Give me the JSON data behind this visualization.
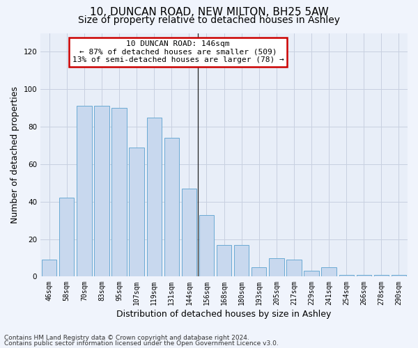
{
  "title1": "10, DUNCAN ROAD, NEW MILTON, BH25 5AW",
  "title2": "Size of property relative to detached houses in Ashley",
  "xlabel": "Distribution of detached houses by size in Ashley",
  "ylabel": "Number of detached properties",
  "categories": [
    "46sqm",
    "58sqm",
    "70sqm",
    "83sqm",
    "95sqm",
    "107sqm",
    "119sqm",
    "131sqm",
    "144sqm",
    "156sqm",
    "168sqm",
    "180sqm",
    "193sqm",
    "205sqm",
    "217sqm",
    "229sqm",
    "241sqm",
    "254sqm",
    "266sqm",
    "278sqm",
    "290sqm"
  ],
  "values": [
    9,
    42,
    91,
    91,
    90,
    69,
    85,
    74,
    47,
    33,
    17,
    17,
    5,
    10,
    9,
    3,
    5,
    1,
    1,
    1,
    1
  ],
  "bar_color": "#c8d8ee",
  "bar_edge_color": "#6aaad4",
  "vline_index": 8,
  "annotation_line1": "10 DUNCAN ROAD: 146sqm",
  "annotation_line2": "← 87% of detached houses are smaller (509)",
  "annotation_line3": "13% of semi-detached houses are larger (78) →",
  "annotation_box_color": "#ffffff",
  "annotation_box_edge": "#cc0000",
  "ylim": [
    0,
    130
  ],
  "yticks": [
    0,
    20,
    40,
    60,
    80,
    100,
    120
  ],
  "grid_color": "#c8d0e0",
  "bg_color": "#e8eef8",
  "fig_bg_color": "#f0f4fc",
  "footer1": "Contains HM Land Registry data © Crown copyright and database right 2024.",
  "footer2": "Contains public sector information licensed under the Open Government Licence v3.0.",
  "title1_fontsize": 11,
  "title2_fontsize": 10,
  "tick_fontsize": 7,
  "ylabel_fontsize": 9,
  "xlabel_fontsize": 9,
  "annotation_fontsize": 8,
  "footer_fontsize": 6.5
}
